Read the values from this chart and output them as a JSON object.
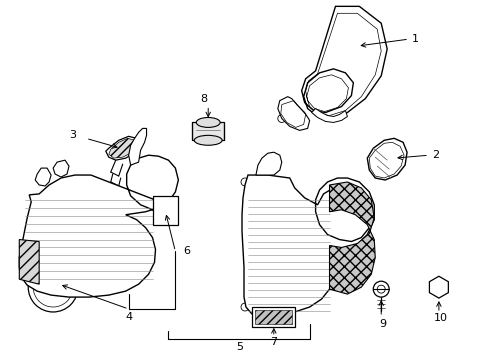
{
  "background_color": "#ffffff",
  "fig_width": 4.89,
  "fig_height": 3.6,
  "dpi": 100
}
